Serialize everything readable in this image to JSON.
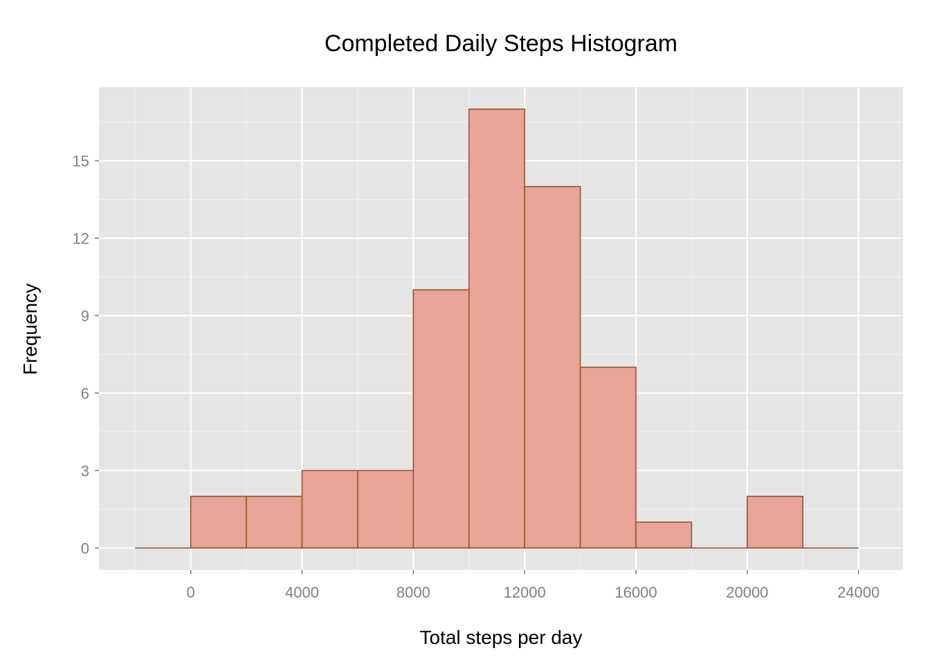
{
  "chart_data": {
    "type": "bar",
    "title": "Completed Daily Steps Histogram",
    "xlabel": "Total steps per day",
    "ylabel": "Frequency",
    "bin_width": 2000,
    "bins": [
      {
        "start": -2000,
        "end": 0,
        "count": 0
      },
      {
        "start": 0,
        "end": 2000,
        "count": 2
      },
      {
        "start": 2000,
        "end": 4000,
        "count": 2
      },
      {
        "start": 4000,
        "end": 6000,
        "count": 3
      },
      {
        "start": 6000,
        "end": 8000,
        "count": 3
      },
      {
        "start": 8000,
        "end": 10000,
        "count": 10
      },
      {
        "start": 10000,
        "end": 12000,
        "count": 17
      },
      {
        "start": 12000,
        "end": 14000,
        "count": 14
      },
      {
        "start": 14000,
        "end": 16000,
        "count": 7
      },
      {
        "start": 16000,
        "end": 18000,
        "count": 1
      },
      {
        "start": 18000,
        "end": 20000,
        "count": 0
      },
      {
        "start": 20000,
        "end": 22000,
        "count": 2
      },
      {
        "start": 22000,
        "end": 24000,
        "count": 0
      }
    ],
    "x_ticks": [
      "0",
      "4000",
      "8000",
      "12000",
      "16000",
      "20000",
      "24000"
    ],
    "y_ticks": [
      "0",
      "3",
      "6",
      "9",
      "12",
      "15"
    ],
    "xlim": [
      -3300,
      25600
    ],
    "ylim": [
      -0.85,
      17.85
    ],
    "grid": true,
    "colors": {
      "panel_background": "#e5e5e5",
      "grid_major": "#ffffff",
      "grid_minor": "#f2f2f2",
      "bar_fill": "#eaa397",
      "bar_outline": "#8b5a2b",
      "tick_text": "#7f7f7f",
      "tick_mark": "#7f7f7f"
    }
  }
}
